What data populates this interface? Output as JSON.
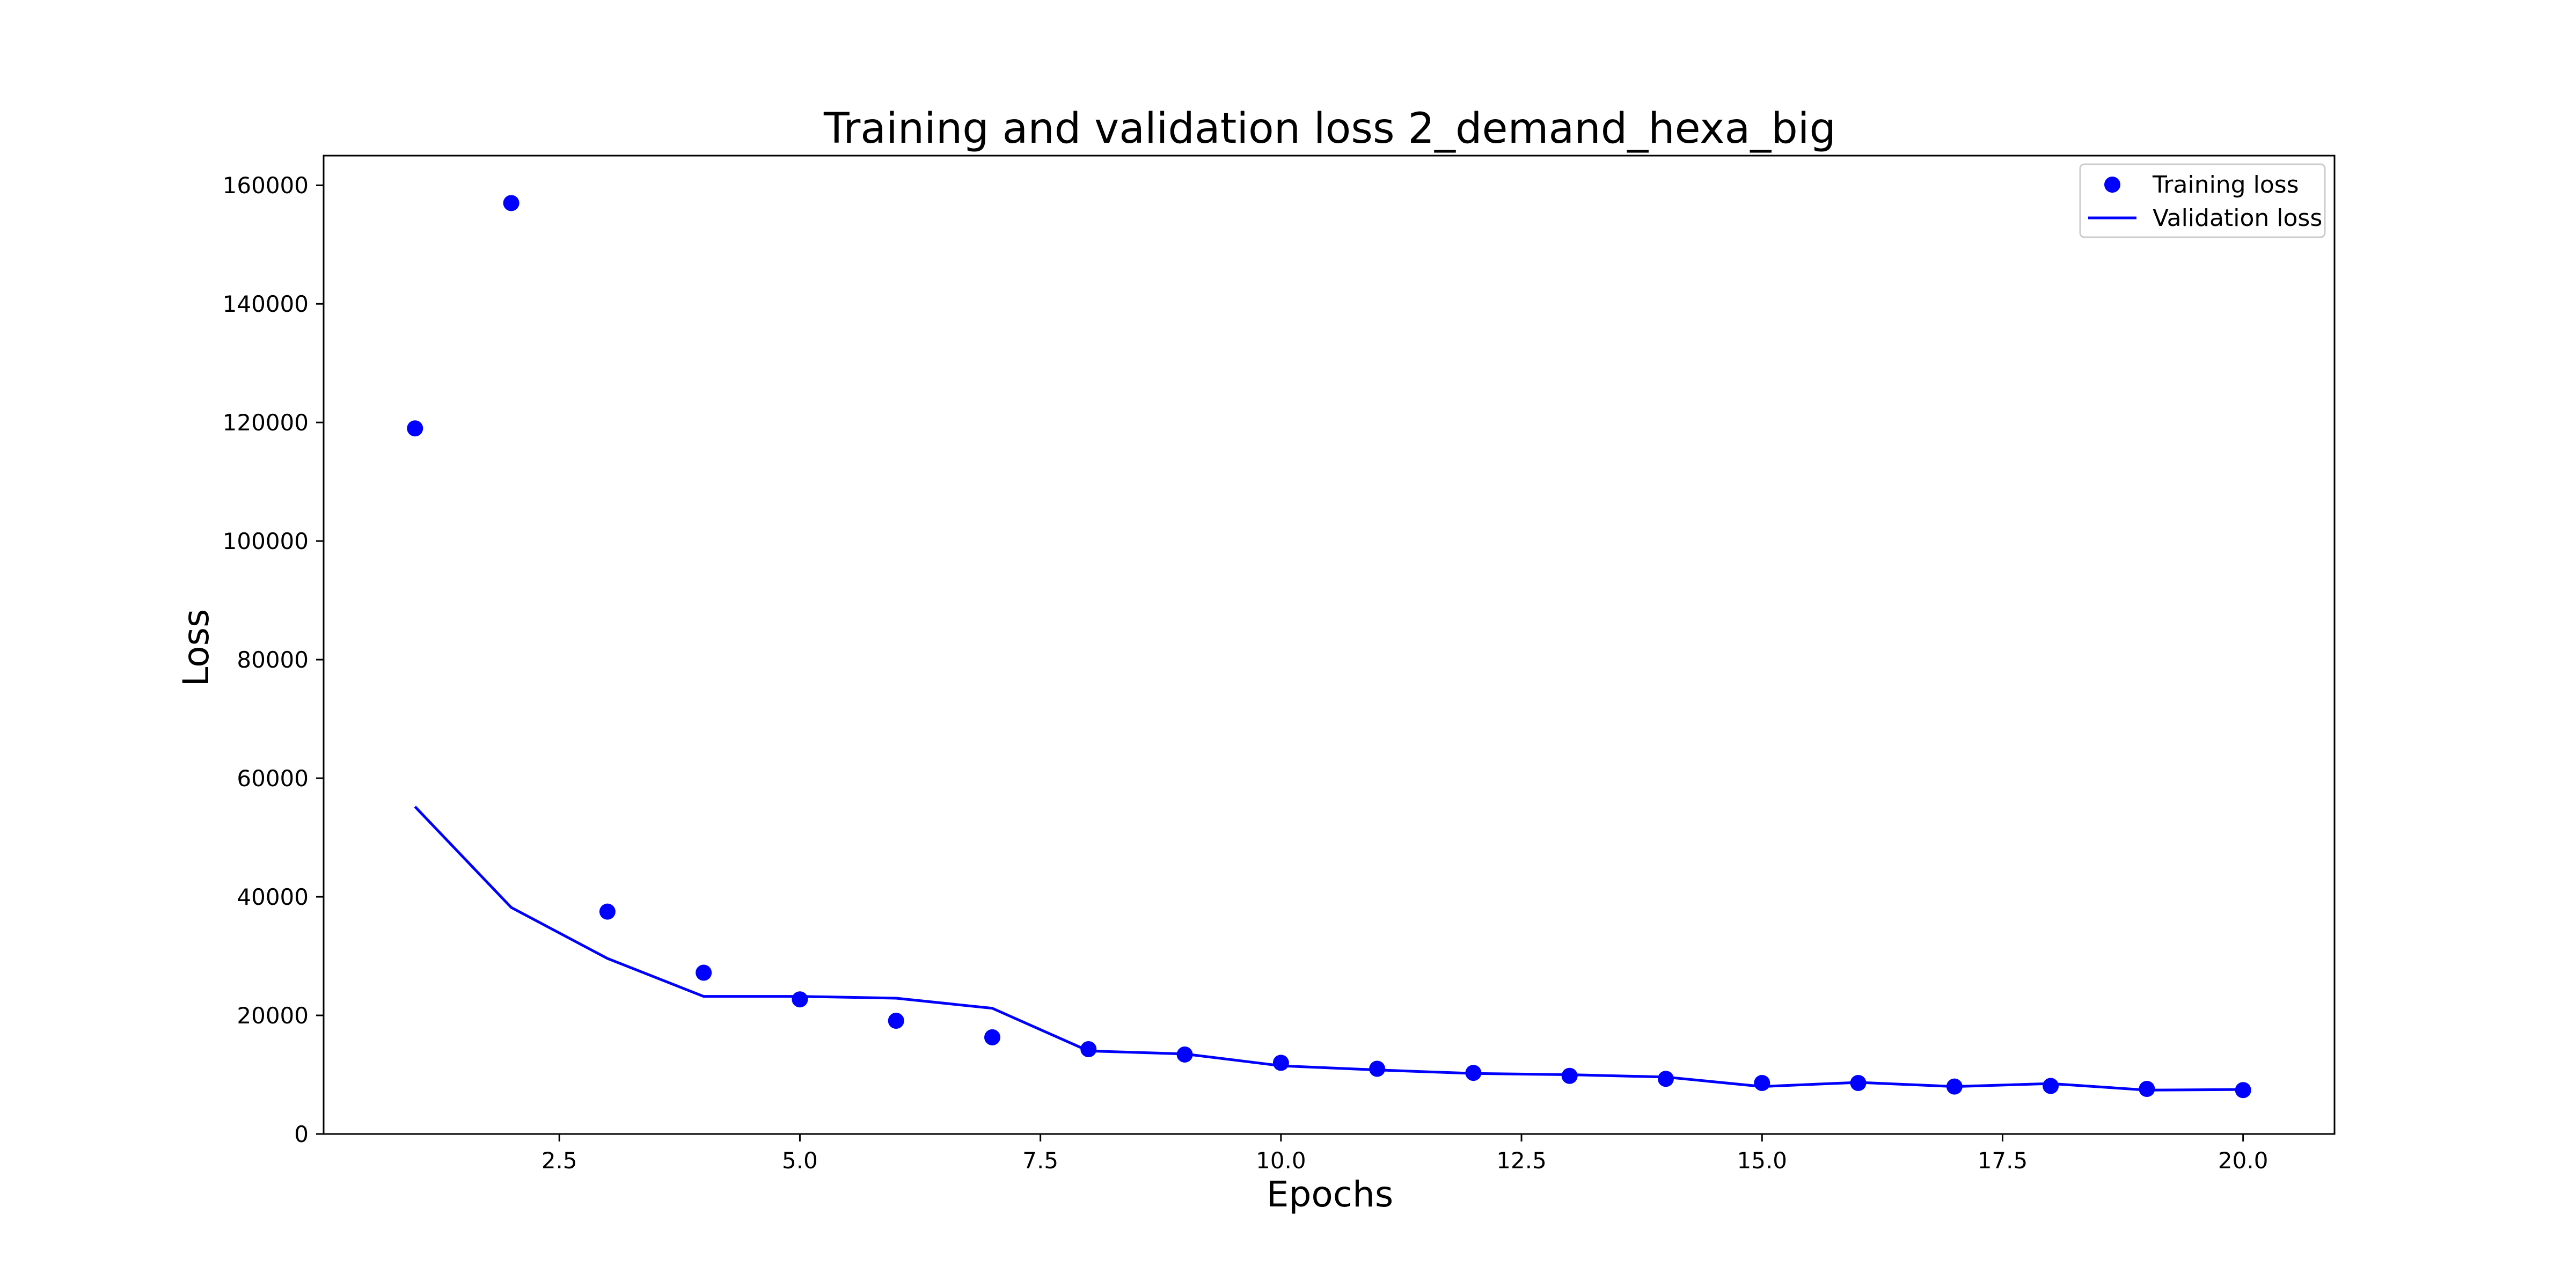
{
  "chart_data": {
    "type": "line",
    "title": "Training and validation loss 2_demand_hexa_big",
    "xlabel": "Epochs",
    "ylabel": "Loss",
    "xlim": [
      0.05,
      20.95
    ],
    "ylim": [
      0,
      165000
    ],
    "x_ticks": [
      2.5,
      5.0,
      7.5,
      10.0,
      12.5,
      15.0,
      17.5,
      20.0
    ],
    "x_tick_labels": [
      "2.5",
      "5.0",
      "7.5",
      "10.0",
      "12.5",
      "15.0",
      "17.5",
      "20.0"
    ],
    "y_ticks": [
      0,
      20000,
      40000,
      60000,
      80000,
      100000,
      120000,
      140000,
      160000
    ],
    "y_tick_labels": [
      "0",
      "20000",
      "40000",
      "60000",
      "80000",
      "100000",
      "120000",
      "140000",
      "160000"
    ],
    "grid": false,
    "legend_position": "top-right",
    "x": [
      1,
      2,
      3,
      4,
      5,
      6,
      7,
      8,
      9,
      10,
      11,
      12,
      13,
      14,
      15,
      16,
      17,
      18,
      19,
      20
    ],
    "series": [
      {
        "name": "Training loss",
        "style": "markers",
        "color": "#0000ff",
        "values": [
          119000,
          157000,
          37500,
          27200,
          22700,
          19100,
          16300,
          14300,
          13400,
          12000,
          11000,
          10300,
          9800,
          9300,
          8600,
          8600,
          8000,
          8100,
          7600,
          7400
        ]
      },
      {
        "name": "Validation loss",
        "style": "line",
        "color": "#0000ff",
        "values": [
          55200,
          38200,
          29600,
          23200,
          23200,
          22900,
          21200,
          14000,
          13500,
          11500,
          10800,
          10200,
          10000,
          9600,
          8000,
          8700,
          8000,
          8500,
          7400,
          7500
        ]
      }
    ]
  }
}
